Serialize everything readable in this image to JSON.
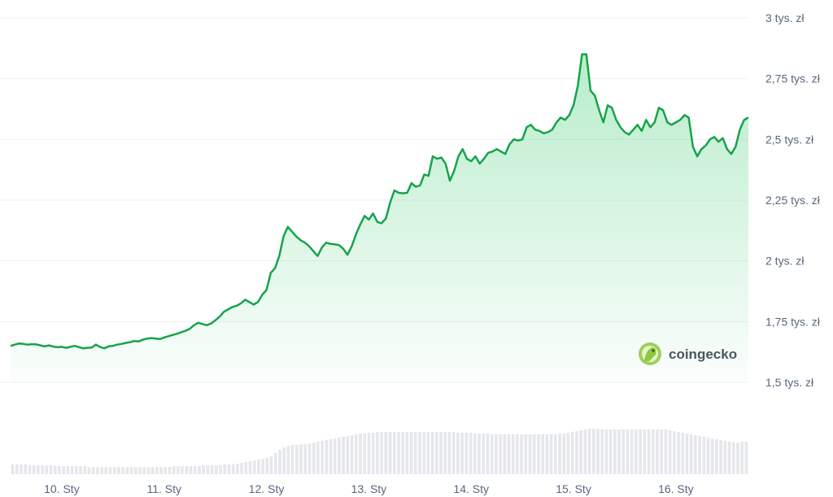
{
  "watermark": {
    "text": "coingecko",
    "icon": "gecko-logo-icon",
    "icon_color": "#8dc63f"
  },
  "colors": {
    "line": "#16a34a",
    "fill_top": "#22c55e",
    "grid": "#eef0f3",
    "volume": "#e5e7eb"
  },
  "chart_data": {
    "type": "area",
    "title": "",
    "xlabel": "",
    "ylabel": "",
    "ylim": [
      1500,
      3000
    ],
    "y_ticks": [
      {
        "value": 3000,
        "label": "3 tys. zł"
      },
      {
        "value": 2750,
        "label": "2,75 tys. zł"
      },
      {
        "value": 2500,
        "label": "2,5 tys. zł"
      },
      {
        "value": 2250,
        "label": "2,25 tys. zł"
      },
      {
        "value": 2000,
        "label": "2 tys. zł"
      },
      {
        "value": 1750,
        "label": "1,75 tys. zł"
      },
      {
        "value": 1500,
        "label": "1,5 tys. zł"
      }
    ],
    "x_ticks": [
      {
        "index": 12,
        "label": "10. Sty"
      },
      {
        "index": 36,
        "label": "11. Sty"
      },
      {
        "index": 60,
        "label": "12. Sty"
      },
      {
        "index": 84,
        "label": "13. Sty"
      },
      {
        "index": 108,
        "label": "14. Sty"
      },
      {
        "index": 132,
        "label": "15. Sty"
      },
      {
        "index": 156,
        "label": "16. Sty"
      }
    ],
    "grid": true,
    "legend": "none",
    "series": [
      {
        "values": [
          1650,
          1655,
          1660,
          1658,
          1655,
          1657,
          1656,
          1652,
          1648,
          1652,
          1647,
          1645,
          1646,
          1642,
          1646,
          1650,
          1645,
          1640,
          1642,
          1643,
          1655,
          1645,
          1640,
          1648,
          1650,
          1655,
          1658,
          1662,
          1665,
          1670,
          1668,
          1675,
          1680,
          1682,
          1680,
          1678,
          1684,
          1690,
          1695,
          1700,
          1706,
          1712,
          1720,
          1735,
          1745,
          1740,
          1735,
          1742,
          1755,
          1770,
          1790,
          1800,
          1810,
          1815,
          1825,
          1840,
          1830,
          1820,
          1830,
          1860,
          1880,
          1950,
          1970,
          2020,
          2100,
          2140,
          2120,
          2100,
          2085,
          2075,
          2060,
          2040,
          2020,
          2055,
          2075,
          2070,
          2068,
          2065,
          2050,
          2025,
          2060,
          2110,
          2150,
          2185,
          2170,
          2195,
          2160,
          2155,
          2175,
          2240,
          2290,
          2280,
          2278,
          2280,
          2320,
          2305,
          2310,
          2355,
          2350,
          2430,
          2420,
          2425,
          2400,
          2330,
          2370,
          2430,
          2460,
          2420,
          2410,
          2430,
          2400,
          2420,
          2445,
          2450,
          2460,
          2450,
          2440,
          2480,
          2500,
          2495,
          2500,
          2550,
          2560,
          2540,
          2535,
          2525,
          2530,
          2540,
          2570,
          2590,
          2580,
          2600,
          2640,
          2720,
          2850,
          2850,
          2700,
          2680,
          2620,
          2570,
          2640,
          2630,
          2580,
          2550,
          2530,
          2520,
          2540,
          2560,
          2535,
          2580,
          2550,
          2570,
          2630,
          2620,
          2570,
          2560,
          2570,
          2580,
          2600,
          2590,
          2470,
          2430,
          2460,
          2475,
          2500,
          2510,
          2490,
          2505,
          2460,
          2440,
          2470,
          2540,
          2580,
          2590
        ]
      }
    ],
    "volume": [
      12,
      12,
      12,
      12,
      11,
      11,
      11,
      11,
      11,
      11,
      10,
      10,
      10,
      10,
      10,
      10,
      10,
      10,
      9,
      9,
      9,
      9,
      9,
      9,
      9,
      9,
      9,
      9,
      9,
      9,
      9,
      9,
      9,
      9,
      9,
      9,
      9,
      9,
      10,
      10,
      10,
      10,
      10,
      10,
      10,
      11,
      11,
      11,
      11,
      11,
      12,
      12,
      12,
      13,
      14,
      15,
      16,
      17,
      18,
      19,
      20,
      22,
      26,
      30,
      33,
      35,
      36,
      36,
      37,
      37,
      38,
      39,
      40,
      41,
      42,
      43,
      44,
      45,
      46,
      47,
      48,
      49,
      50,
      50,
      51,
      51,
      52,
      52,
      52,
      52,
      52,
      52,
      52,
      52,
      52,
      52,
      52,
      52,
      52,
      52,
      52,
      52,
      52,
      52,
      52,
      51,
      51,
      51,
      51,
      50,
      50,
      50,
      50,
      49,
      49,
      49,
      49,
      49,
      49,
      49,
      49,
      49,
      49,
      49,
      49,
      49,
      49,
      49,
      49,
      50,
      50,
      51,
      52,
      53,
      54,
      55,
      56,
      56,
      56,
      55,
      55,
      55,
      55,
      55,
      55,
      55,
      55,
      55,
      55,
      55,
      55,
      55,
      55,
      55,
      55,
      54,
      53,
      52,
      51,
      50,
      49,
      48,
      47,
      46,
      45,
      44,
      43,
      42,
      41,
      40,
      39,
      39,
      40,
      40
    ]
  }
}
